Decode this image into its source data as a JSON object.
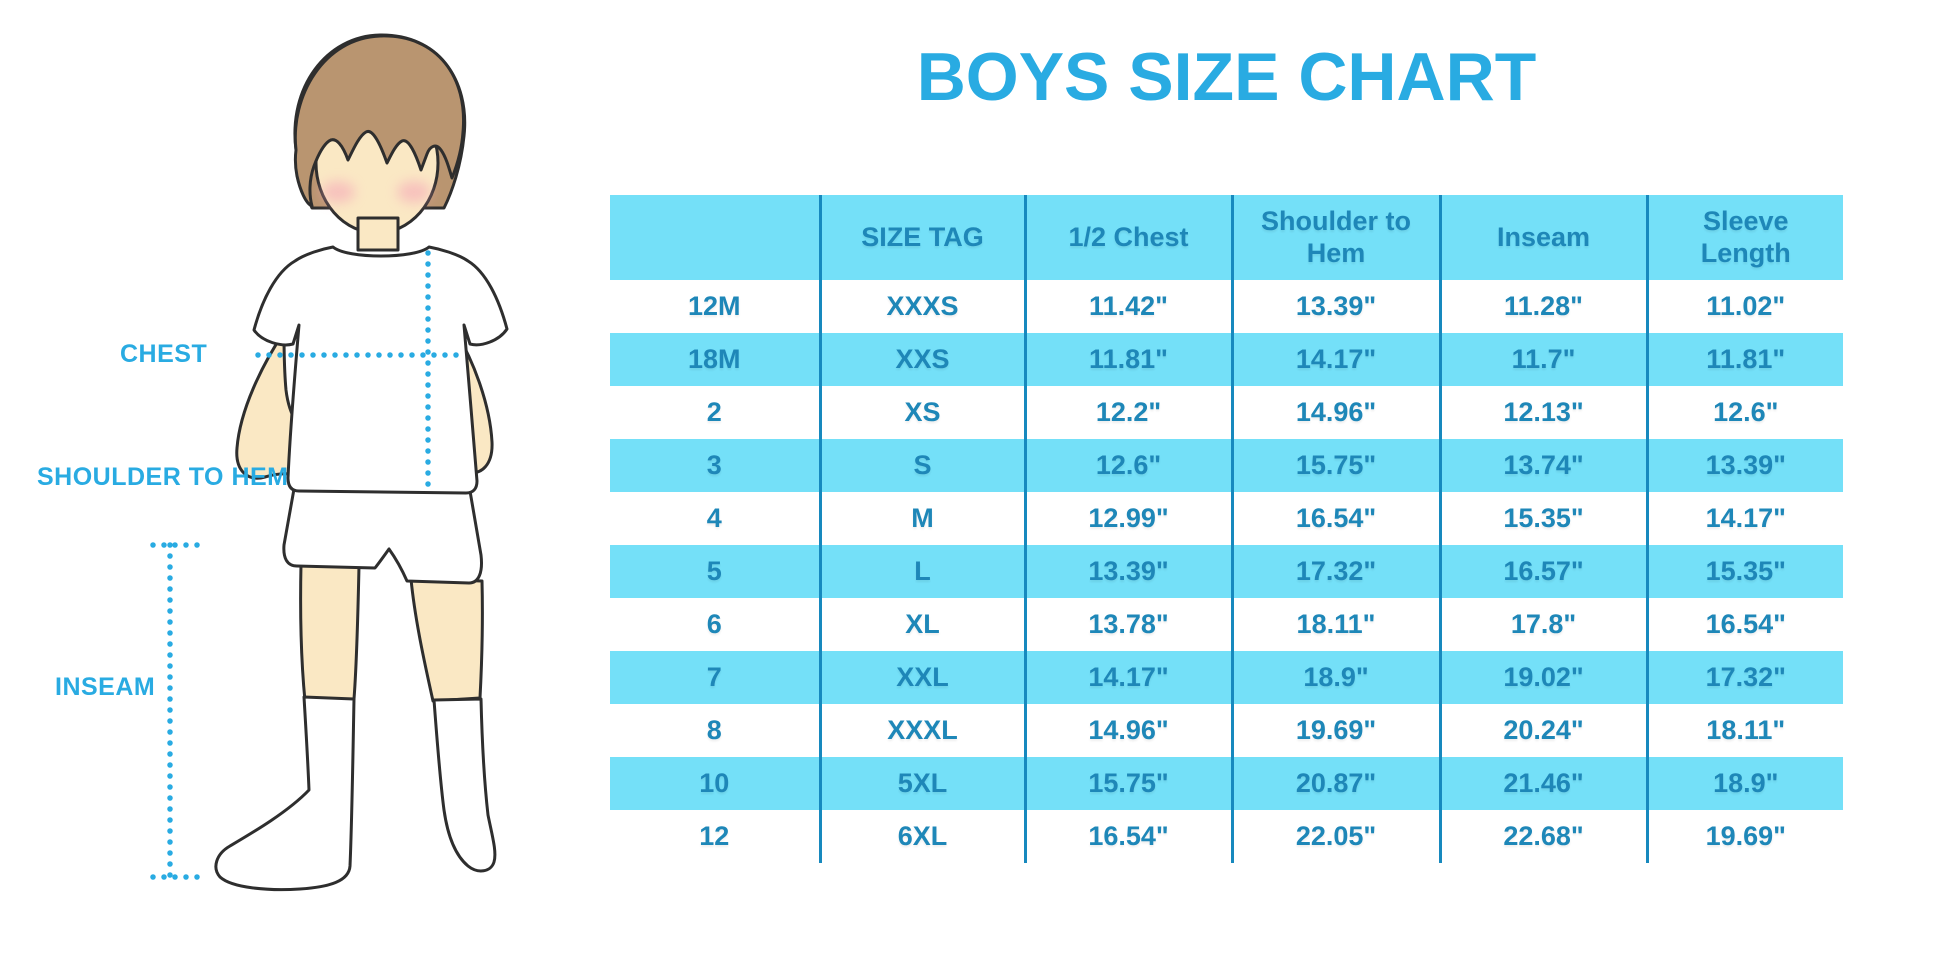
{
  "title": "BOYS SIZE CHART",
  "illustration": {
    "alt": "boy wearing white t-shirt, shorts and knee socks with dotted measurement guides",
    "labels": {
      "chest": "CHEST",
      "shoulder_to_hem": "SHOULDER TO HEM",
      "inseam": "INSEAM"
    }
  },
  "colors": {
    "accent_blue": "#29ABE2",
    "table_fill": "#74E0F8",
    "table_text": "#1E87B8",
    "divider": "#1789BE"
  },
  "chart_data": {
    "type": "table",
    "title": "BOYS SIZE CHART",
    "columns": [
      "",
      "SIZE TAG",
      "1/2 Chest",
      "Shoulder to Hem",
      "Inseam",
      "Sleeve Length"
    ],
    "rows": [
      [
        "12M",
        "XXXS",
        "11.42\"",
        "13.39\"",
        "11.28\"",
        "11.02\""
      ],
      [
        "18M",
        "XXS",
        "11.81\"",
        "14.17\"",
        "11.7\"",
        "11.81\""
      ],
      [
        "2",
        "XS",
        "12.2\"",
        "14.96\"",
        "12.13\"",
        "12.6\""
      ],
      [
        "3",
        "S",
        "12.6\"",
        "15.75\"",
        "13.74\"",
        "13.39\""
      ],
      [
        "4",
        "M",
        "12.99\"",
        "16.54\"",
        "15.35\"",
        "14.17\""
      ],
      [
        "5",
        "L",
        "13.39\"",
        "17.32\"",
        "16.57\"",
        "15.35\""
      ],
      [
        "6",
        "XL",
        "13.78\"",
        "18.11\"",
        "17.8\"",
        "16.54\""
      ],
      [
        "7",
        "XXL",
        "14.17\"",
        "18.9\"",
        "19.02\"",
        "17.32\""
      ],
      [
        "8",
        "XXXL",
        "14.96\"",
        "19.69\"",
        "20.24\"",
        "18.11\""
      ],
      [
        "10",
        "5XL",
        "15.75\"",
        "20.87\"",
        "21.46\"",
        "18.9\""
      ],
      [
        "12",
        "6XL",
        "16.54\"",
        "22.05\"",
        "22.68\"",
        "19.69\""
      ]
    ]
  }
}
